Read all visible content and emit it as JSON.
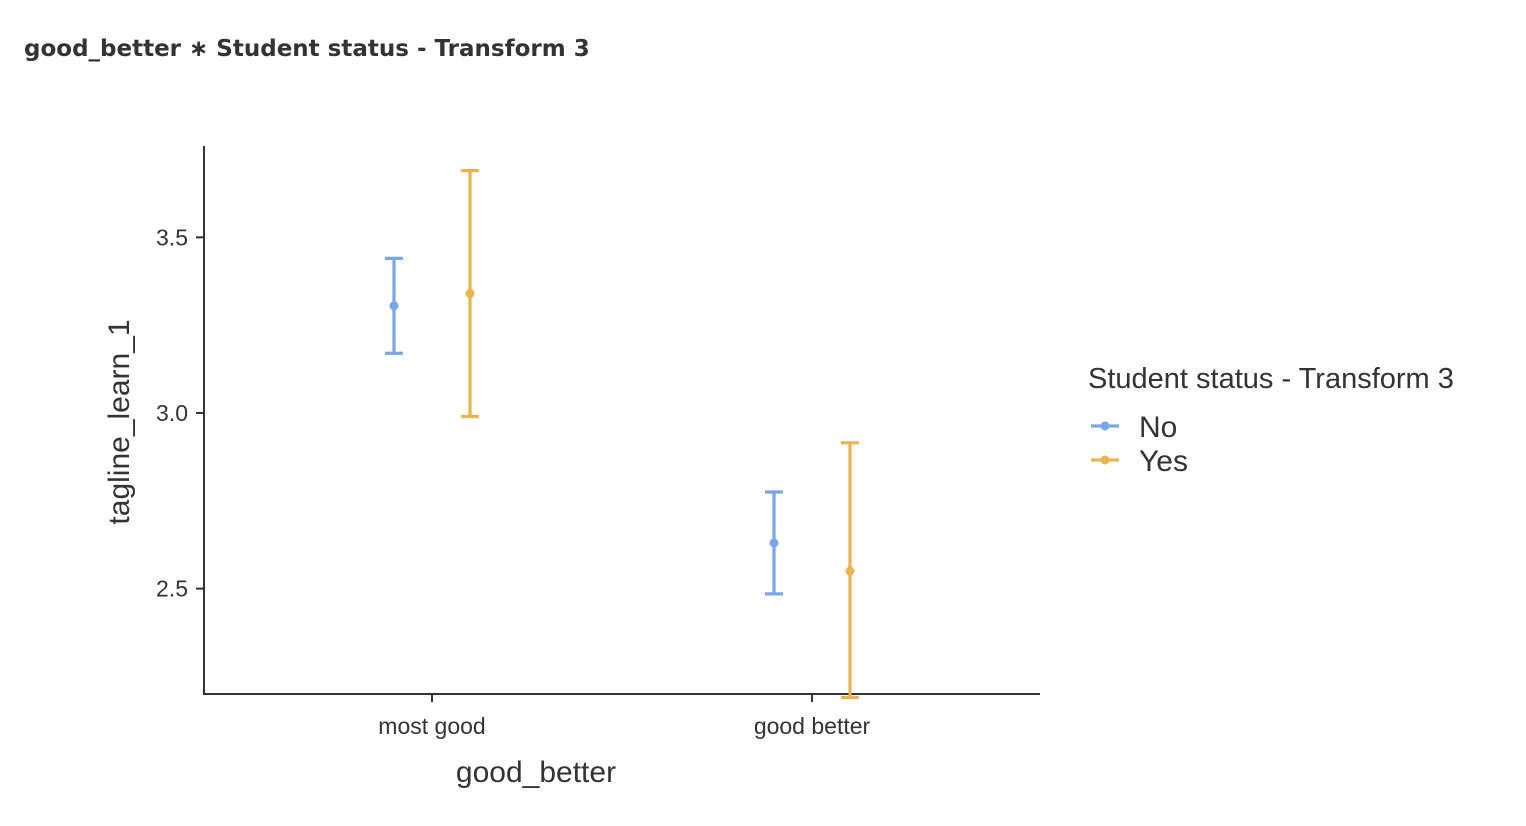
{
  "title": "good_better ∗ Student status - Transform 3",
  "chart_data": {
    "type": "errorbar",
    "title": "good_better ∗ Student status - Transform 3",
    "xlabel": "good_better",
    "ylabel": "tagline_learn_1",
    "categories": [
      "most good",
      "good better"
    ],
    "ylim": [
      2.2,
      3.76
    ],
    "yticks": [
      2.5,
      3.0,
      3.5
    ],
    "ytick_labels": [
      "2.5",
      "3.0",
      "3.5"
    ],
    "grid": false,
    "legend": {
      "title": "Student status - Transform 3",
      "position": "right"
    },
    "series": [
      {
        "name": "No",
        "color": "#7aa6e8",
        "means": [
          3.305,
          2.63
        ],
        "lower": [
          3.17,
          2.485
        ],
        "upper": [
          3.44,
          2.775
        ]
      },
      {
        "name": "Yes",
        "color": "#e8b44e",
        "means": [
          3.34,
          2.55
        ],
        "lower": [
          2.99,
          2.19
        ],
        "upper": [
          3.69,
          2.915
        ]
      }
    ]
  }
}
